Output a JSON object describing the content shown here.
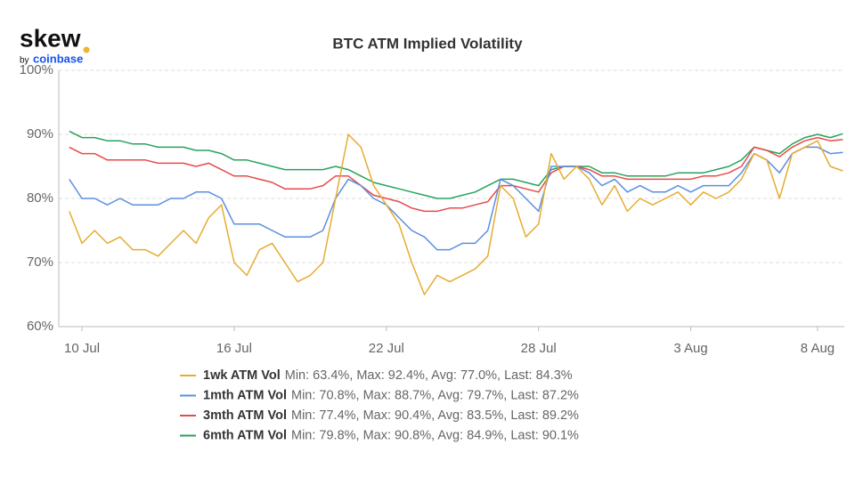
{
  "logo": {
    "name": "skew",
    "byline": "by",
    "brand": "coinbase"
  },
  "chart_data": {
    "type": "line",
    "title": "BTC ATM Implied Volatility",
    "categories": [
      null,
      "10 Jul",
      null,
      null,
      null,
      null,
      null,
      null,
      null,
      null,
      null,
      null,
      null,
      "16 Jul",
      null,
      null,
      null,
      null,
      null,
      null,
      null,
      null,
      null,
      null,
      null,
      "22 Jul",
      null,
      null,
      null,
      null,
      null,
      null,
      null,
      null,
      null,
      null,
      null,
      "28 Jul",
      null,
      null,
      null,
      null,
      null,
      null,
      null,
      null,
      null,
      null,
      null,
      "3 Aug",
      null,
      null,
      null,
      null,
      null,
      null,
      null,
      null,
      null,
      "8 Aug",
      null,
      null
    ],
    "ylim": [
      60,
      100
    ],
    "yticks": [
      {
        "value": 60,
        "label": "60%"
      },
      {
        "value": 70,
        "label": "70%"
      },
      {
        "value": 80,
        "label": "80%"
      },
      {
        "value": 90,
        "label": "90%"
      },
      {
        "value": 100,
        "label": "100%"
      }
    ],
    "grid": true,
    "legend": "bottom",
    "series": [
      {
        "name": "1wk ATM Vol",
        "stats": "Min: 63.4%, Max: 92.4%, Avg: 77.0%, Last: 84.3%",
        "color": "#e6ac2f",
        "values": [
          78,
          73,
          75,
          73,
          74,
          72,
          72,
          71,
          73,
          75,
          73,
          77,
          79,
          70,
          68,
          72,
          73,
          70,
          67,
          68,
          70,
          80,
          90,
          88,
          82,
          79,
          76,
          70,
          65,
          68,
          67,
          68,
          69,
          71,
          82,
          80,
          74,
          76,
          87,
          83,
          85,
          83,
          79,
          82,
          78,
          80,
          79,
          80,
          81,
          79,
          81,
          80,
          81,
          83,
          87,
          86,
          80,
          87,
          88,
          89,
          85,
          84.3
        ]
      },
      {
        "name": "1mth ATM Vol",
        "stats": "Min: 70.8%, Max: 88.7%, Avg: 79.7%, Last: 87.2%",
        "color": "#5b8fe0",
        "values": [
          83,
          80,
          80,
          79,
          80,
          79,
          79,
          79,
          80,
          80,
          81,
          81,
          80,
          76,
          76,
          76,
          75,
          74,
          74,
          74,
          75,
          80,
          83,
          82,
          80,
          79,
          77,
          75,
          74,
          72,
          72,
          73,
          73,
          75,
          83,
          82,
          80,
          78,
          85,
          85,
          85,
          84,
          82,
          83,
          81,
          82,
          81,
          81,
          82,
          81,
          82,
          82,
          82,
          84,
          87,
          86,
          84,
          87,
          88,
          88,
          87,
          87.2
        ]
      },
      {
        "name": "3mth ATM Vol",
        "stats": "Min: 77.4%, Max: 90.4%, Avg: 83.5%, Last: 89.2%",
        "color": "#e84a4a",
        "values": [
          88,
          87,
          87,
          86,
          86,
          86,
          86,
          85.5,
          85.5,
          85.5,
          85,
          85.5,
          84.5,
          83.5,
          83.5,
          83,
          82.5,
          81.5,
          81.5,
          81.5,
          82,
          83.5,
          83.5,
          82,
          80.5,
          80,
          79.5,
          78.5,
          78,
          78,
          78.5,
          78.5,
          79,
          79.5,
          82,
          82,
          81.5,
          81,
          84,
          85,
          85,
          84.5,
          83.5,
          83.5,
          83,
          83,
          83,
          83,
          83,
          83,
          83.5,
          83.5,
          84,
          85,
          88,
          87.5,
          86.5,
          88,
          89,
          89.5,
          89,
          89.2
        ]
      },
      {
        "name": "6mth ATM Vol",
        "stats": "Min: 79.8%, Max: 90.8%, Avg: 84.9%, Last: 90.1%",
        "color": "#27a35a",
        "values": [
          90.5,
          89.5,
          89.5,
          89,
          89,
          88.5,
          88.5,
          88,
          88,
          88,
          87.5,
          87.5,
          87,
          86,
          86,
          85.5,
          85,
          84.5,
          84.5,
          84.5,
          84.5,
          85,
          84.5,
          83.5,
          82.5,
          82,
          81.5,
          81,
          80.5,
          80,
          80,
          80.5,
          81,
          82,
          83,
          83,
          82.5,
          82,
          84.5,
          85,
          85,
          85,
          84,
          84,
          83.5,
          83.5,
          83.5,
          83.5,
          84,
          84,
          84,
          84.5,
          85,
          86,
          88,
          87.5,
          87,
          88.5,
          89.5,
          90,
          89.5,
          90.1
        ]
      }
    ]
  }
}
